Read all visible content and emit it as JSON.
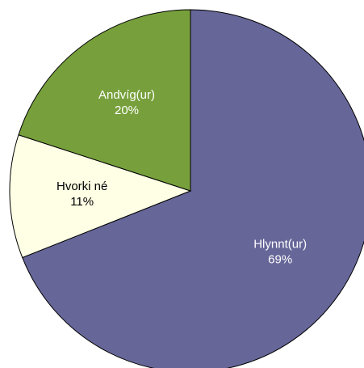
{
  "chart_data": {
    "type": "pie",
    "categories": [
      "Hlynnt(ur)",
      "Hvorki né",
      "Andvíg(ur)"
    ],
    "values": [
      69,
      11,
      20
    ],
    "value_labels": [
      "69%",
      "11%",
      "20%"
    ],
    "colors": [
      "#666699",
      "#ffffe5",
      "#77a03c"
    ],
    "label_colors": [
      "#ffffff",
      "#000000",
      "#ffffff"
    ]
  }
}
